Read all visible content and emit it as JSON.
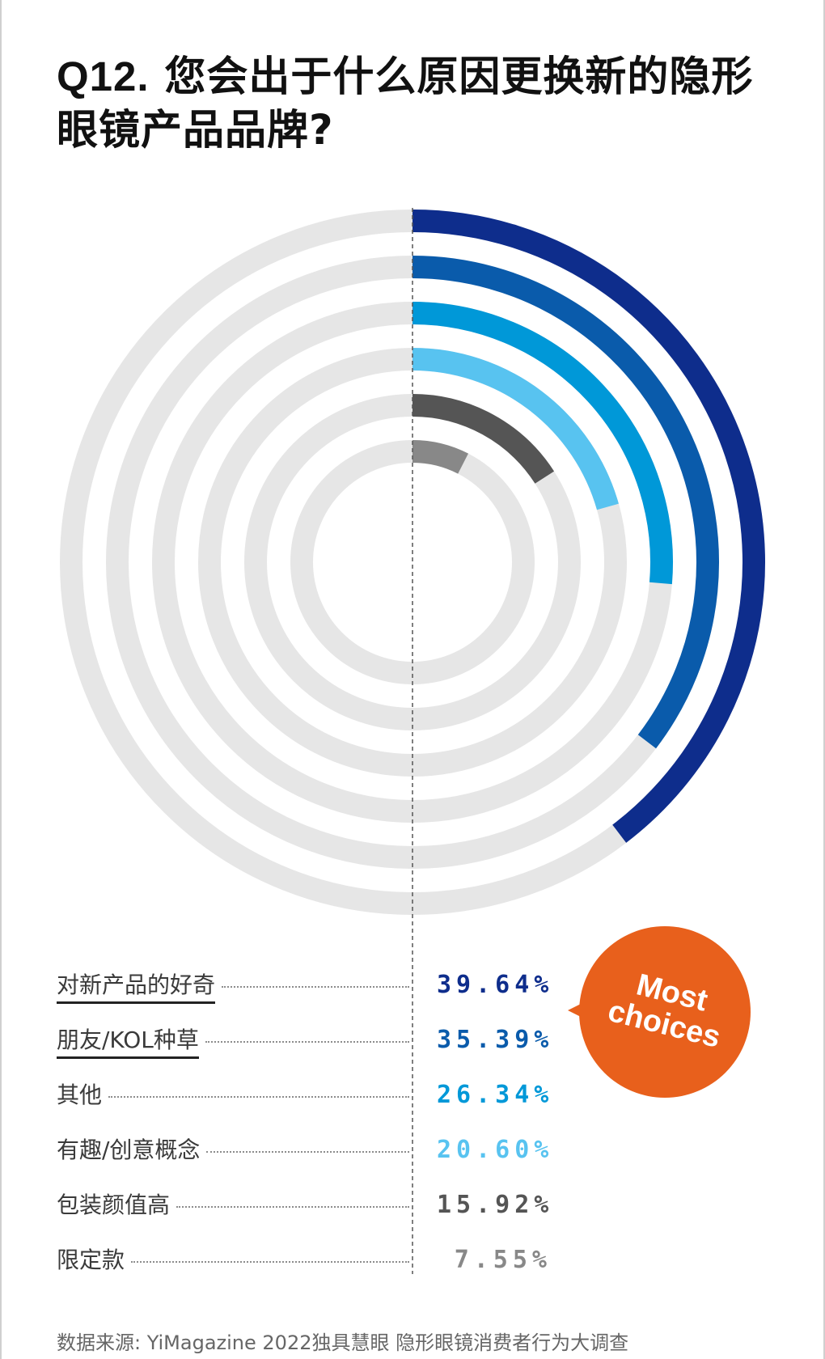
{
  "title": {
    "number": "Q12.",
    "line1": "您会出于什么原因更换新的隐形",
    "line2": "眼镜产品品牌?"
  },
  "badge": {
    "line1": "Most",
    "line2": "choices",
    "color": "#e8601c"
  },
  "source": "数据来源: YiMagazine 2022独具慧眼 隐形眼镜消费者行为大调查",
  "chart_data": {
    "type": "radial-bar",
    "value_max": 100,
    "track_color": "#e6e6e6",
    "categories": [
      "对新产品的好奇",
      "朋友/KOL种草",
      "其他",
      "有趣/创意概念",
      "包装颜值高",
      "限定款"
    ],
    "values": [
      39.64,
      35.39,
      26.34,
      20.6,
      15.92,
      7.55
    ],
    "value_labels": [
      "39.64%",
      "35.39%",
      "26.34%",
      "20.60%",
      "15.92%",
      "7.55%"
    ],
    "colors": [
      "#0e2d8c",
      "#0a5bab",
      "#0098d8",
      "#58c3f0",
      "#555555",
      "#888888"
    ],
    "underlined": [
      true,
      true,
      false,
      false,
      false,
      false
    ]
  }
}
